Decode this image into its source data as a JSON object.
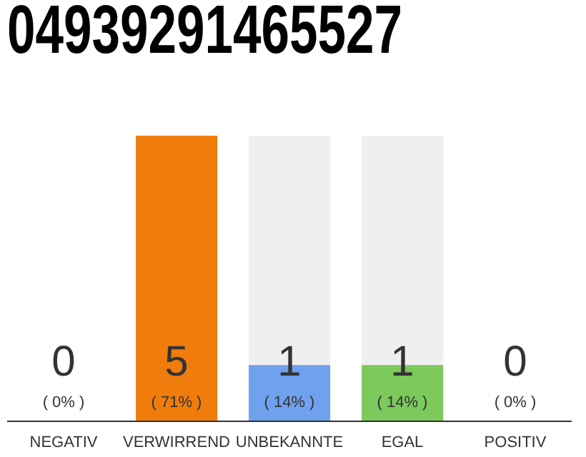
{
  "chart_data": {
    "type": "bar",
    "title": "04939291465527",
    "categories": [
      "NEGATIV",
      "VERWIRREND",
      "UNBEKANNTE",
      "EGAL",
      "POSITIV"
    ],
    "values": [
      0,
      71,
      14,
      14,
      0
    ],
    "colors": [
      "#efefef",
      "#f07c0c",
      "#6fa1ee",
      "#7cc95c",
      "#efefef"
    ],
    "value_labels": [
      "( 0% )",
      "( 71% )",
      "( 14% )",
      "( 14% )",
      "( 0% )"
    ],
    "annotations": [
      "0",
      "5",
      "1",
      "1",
      "0"
    ],
    "tick_labels": "x"
  }
}
